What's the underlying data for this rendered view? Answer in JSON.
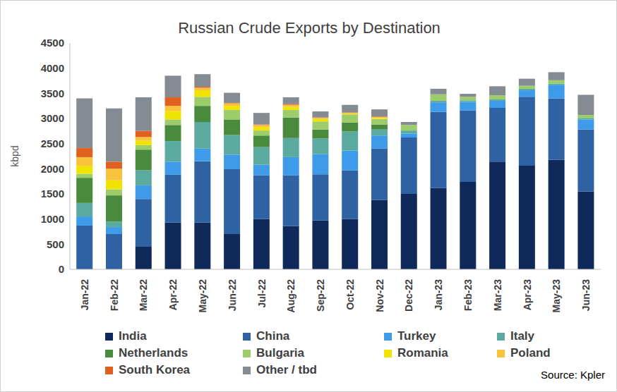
{
  "chart_data": {
    "type": "bar",
    "title": "Russian Crude Exports by Destination",
    "y_label": "kbpd",
    "annotation": "Source: Kpler",
    "stacked": true,
    "grid": false,
    "legend": "bottom",
    "ylim": [
      0,
      4500
    ],
    "yticks": [
      0,
      500,
      1000,
      1500,
      2000,
      2500,
      3000,
      3500,
      4000,
      4500
    ],
    "categories": [
      "Jan-22",
      "Feb-22",
      "Mar-22",
      "Apr-22",
      "May-22",
      "Jun-22",
      "Jul-22",
      "Aug-22",
      "Sep-22",
      "Oct-22",
      "Nov-22",
      "Dec-22",
      "Jan-23",
      "Feb-23",
      "Mar-23",
      "Apr-23",
      "May-23",
      "Jun-23"
    ],
    "series": [
      {
        "name": "India",
        "color": "#0f2a5a",
        "values": [
          0,
          0,
          450,
          930,
          930,
          700,
          1000,
          860,
          970,
          1000,
          1380,
          1500,
          1620,
          1740,
          2140,
          2060,
          2180,
          1550
        ]
      },
      {
        "name": "China",
        "color": "#2e62a3",
        "values": [
          870,
          700,
          950,
          950,
          1220,
          1290,
          870,
          1010,
          920,
          970,
          1020,
          1120,
          1510,
          1420,
          1070,
          1370,
          1220,
          1230
        ]
      },
      {
        "name": "Turkey",
        "color": "#3d9be9",
        "values": [
          180,
          140,
          270,
          260,
          250,
          290,
          210,
          360,
          400,
          390,
          260,
          80,
          190,
          170,
          140,
          130,
          270,
          200
        ]
      },
      {
        "name": "Italy",
        "color": "#5aaa9f",
        "values": [
          270,
          110,
          300,
          410,
          530,
          390,
          350,
          380,
          310,
          380,
          120,
          60,
          30,
          30,
          30,
          30,
          20,
          30
        ]
      },
      {
        "name": "Netherlands",
        "color": "#4a8a3c",
        "values": [
          500,
          520,
          410,
          320,
          320,
          310,
          230,
          410,
          180,
          180,
          100,
          0,
          0,
          0,
          0,
          0,
          0,
          0
        ]
      },
      {
        "name": "Bulgaria",
        "color": "#9dcc6a",
        "values": [
          80,
          120,
          90,
          110,
          180,
          190,
          100,
          150,
          160,
          160,
          110,
          110,
          130,
          70,
          80,
          60,
          70,
          60
        ]
      },
      {
        "name": "Romania",
        "color": "#f0e300",
        "values": [
          160,
          180,
          90,
          170,
          130,
          80,
          70,
          60,
          50,
          20,
          20,
          0,
          0,
          0,
          0,
          0,
          0,
          0
        ]
      },
      {
        "name": "Poland",
        "color": "#f8c23d",
        "values": [
          170,
          230,
          70,
          100,
          50,
          50,
          40,
          40,
          20,
          10,
          20,
          0,
          0,
          0,
          0,
          0,
          0,
          0
        ]
      },
      {
        "name": "South Korea",
        "color": "#e0601f",
        "values": [
          180,
          140,
          120,
          170,
          20,
          10,
          10,
          20,
          10,
          10,
          10,
          0,
          0,
          0,
          0,
          0,
          0,
          0
        ]
      },
      {
        "name": "Other / tbd",
        "color": "#848b93",
        "values": [
          990,
          1060,
          670,
          430,
          250,
          200,
          230,
          130,
          120,
          150,
          140,
          60,
          110,
          60,
          180,
          140,
          160,
          400
        ]
      }
    ]
  }
}
